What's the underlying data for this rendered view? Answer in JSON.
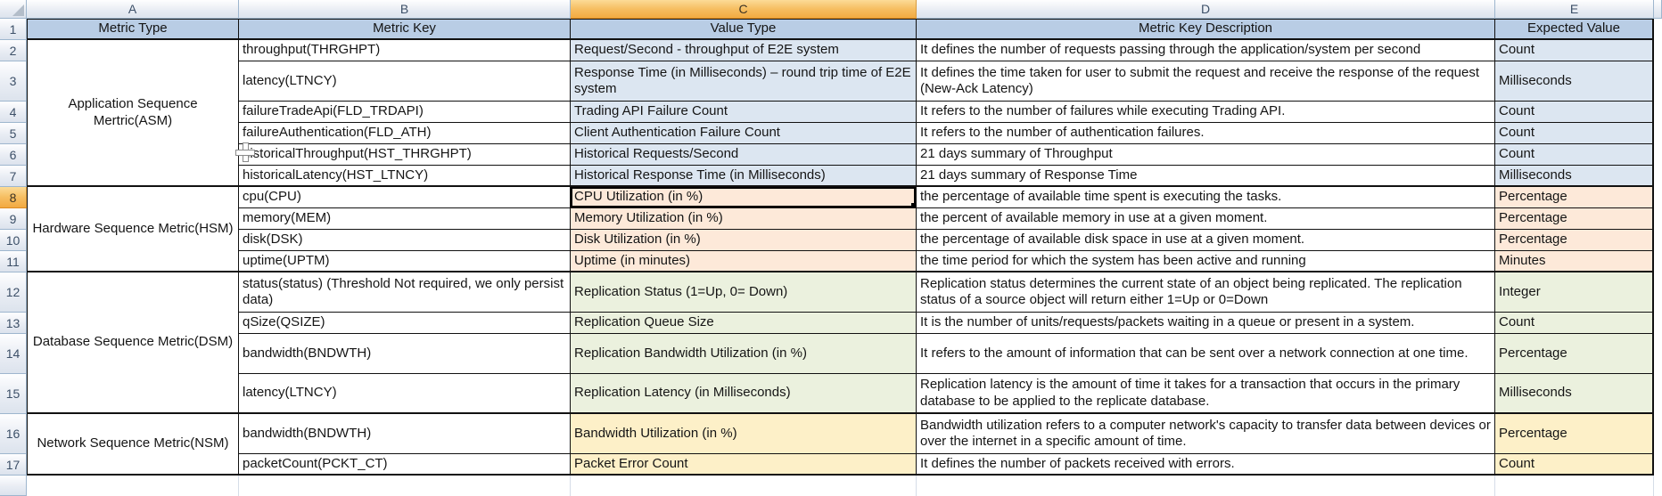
{
  "sheet": {
    "columns": [
      "A",
      "B",
      "C",
      "D",
      "E"
    ],
    "row_numbers": [
      "1",
      "2",
      "3",
      "4",
      "5",
      "6",
      "7",
      "8",
      "9",
      "10",
      "11",
      "12",
      "13",
      "14",
      "15",
      "16",
      "17"
    ],
    "selection": {
      "cell": "C8",
      "column": "C",
      "row": "8"
    },
    "header_row": {
      "metric_type": "Metric Type",
      "metric_key": "Metric Key",
      "value_type": "Value Type",
      "metric_key_description": "Metric Key Description",
      "expected_value": "Expected Value"
    },
    "groups": [
      {
        "label": "Application Sequence Mertric(ASM)",
        "rows": "2-7"
      },
      {
        "label": "Hardware Sequence Metric(HSM)",
        "rows": "8-11"
      },
      {
        "label": "Database Sequence Metric(DSM)",
        "rows": "12-15"
      },
      {
        "label": "Network Sequence Metric(NSM)",
        "rows": "16-17"
      }
    ],
    "rows": [
      {
        "n": "2",
        "key": "throughput(THRGHPT)",
        "value_type": "Request/Second - throughput of E2E system",
        "desc": "It defines the number of requests passing through the application/system per second",
        "expected": "Count"
      },
      {
        "n": "3",
        "key": "latency(LTNCY)",
        "value_type": "Response Time (in Milliseconds) – round trip time of E2E system",
        "desc": "It defines the time taken for user to submit the request and receive the response of the request (New-Ack Latency)",
        "expected": "Milliseconds"
      },
      {
        "n": "4",
        "key": "failureTradeApi(FLD_TRDAPI)",
        "value_type": "Trading API Failure Count",
        "desc": "It refers to the number of failures while executing Trading API.",
        "expected": "Count"
      },
      {
        "n": "5",
        "key": "failureAuthentication(FLD_ATH)",
        "value_type": "Client Authentication Failure Count",
        "desc": "It refers to the number of authentication failures.",
        "expected": "Count"
      },
      {
        "n": "6",
        "key": "historicalThroughput(HST_THRGHPT)",
        "value_type": "Historical Requests/Second",
        "desc": "21 days summary of Throughput",
        "expected": "Count"
      },
      {
        "n": "7",
        "key": "historicalLatency(HST_LTNCY)",
        "value_type": "Historical Response Time (in Milliseconds)",
        "desc": "21 days summary of Response Time",
        "expected": "Milliseconds"
      },
      {
        "n": "8",
        "key": "cpu(CPU)",
        "value_type": "CPU Utilization (in %)",
        "desc": "the percentage of available time spent is executing the tasks.",
        "expected": "Percentage"
      },
      {
        "n": "9",
        "key": "memory(MEM)",
        "value_type": "Memory Utilization (in %)",
        "desc": "the percent of available memory in use at a given moment.",
        "expected": "Percentage"
      },
      {
        "n": "10",
        "key": "disk(DSK)",
        "value_type": "Disk Utilization (in %)",
        "desc": "the percentage of available disk space in use at a given moment.",
        "expected": "Percentage"
      },
      {
        "n": "11",
        "key": "uptime(UPTM)",
        "value_type": "Uptime (in minutes)",
        "desc": "the time period for which the system has been active and running",
        "expected": "Minutes"
      },
      {
        "n": "12",
        "key": "status(status) (Threshold Not required, we only persist data)",
        "value_type": "Replication Status (1=Up, 0= Down)",
        "desc": "Replication status determines the current state of an object being replicated. The replication status of a source object will return either 1=Up or 0=Down",
        "expected": "Integer"
      },
      {
        "n": "13",
        "key": "qSize(QSIZE)",
        "value_type": "Replication Queue Size",
        "desc": "It is the number of units/requests/packets waiting in a queue or present in a system.",
        "expected": "Count"
      },
      {
        "n": "14",
        "key": "bandwidth(BNDWTH)",
        "value_type": "Replication Bandwidth Utilization (in %)",
        "desc": "It refers to the amount of information that can be sent over a network connection at one time.",
        "expected": "Percentage"
      },
      {
        "n": "15",
        "key": "latency(LTNCY)",
        "value_type": "Replication Latency (in Milliseconds)",
        "desc": "Replication latency is the amount of time it takes for a transaction that occurs in the primary database to be applied to the replicate database.",
        "expected": "Milliseconds"
      },
      {
        "n": "16",
        "key": "bandwidth(BNDWTH)",
        "value_type": "Bandwidth Utilization (in %)",
        "desc": "Bandwidth utilization refers to a computer network's capacity to transfer data between devices or over the internet in a specific amount of time.",
        "expected": "Percentage"
      },
      {
        "n": "17",
        "key": "packetCount(PCKT_CT)",
        "value_type": "Packet Error Count",
        "desc": "It defines the number of packets received with errors.",
        "expected": "Count"
      }
    ],
    "colors": {
      "header_row_fill": "#B9CDE5",
      "asm_fill": "#DCE6F1",
      "hsm_fill": "#FDE9D9",
      "dsm_fill": "#EBF1DE",
      "nsm_fill": "#FDF0C8",
      "selected_header_fill": "#F5BE62",
      "table_border": "#111111"
    }
  }
}
